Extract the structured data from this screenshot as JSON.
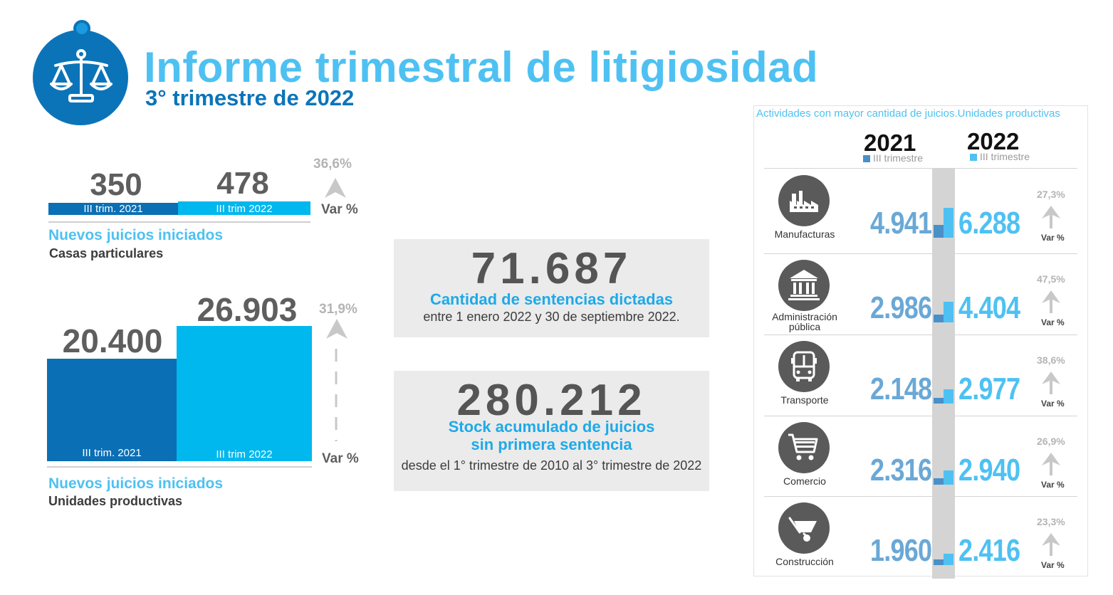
{
  "header": {
    "title": "Informe trimestral de litigiosidad",
    "subtitle": "3° trimestre de 2022"
  },
  "colors": {
    "dark_blue": "#0b74b9",
    "light_blue": "#00b7ee",
    "gray": "#5e5e5e"
  },
  "chart_data": [
    {
      "type": "bar",
      "title": "Nuevos juicios iniciados",
      "subtitle": "Casas particulares",
      "categories": [
        "III trim. 2021",
        "III trim 2022"
      ],
      "values": [
        350,
        478
      ],
      "value_labels": [
        "350",
        "478"
      ],
      "variation": "36,6%",
      "variation_label": "Var %"
    },
    {
      "type": "bar",
      "title": "Nuevos juicios iniciados",
      "subtitle": "Unidades productivas",
      "categories": [
        "III trim. 2021",
        "III trim 2022"
      ],
      "values": [
        20400,
        26903
      ],
      "value_labels": [
        "20.400",
        "26.903"
      ],
      "variation": "31,9%",
      "variation_label": "Var %"
    },
    {
      "type": "bar",
      "title": "Actividades con mayor cantidad de juicios.Unidades productivas",
      "series": [
        {
          "name": "2021",
          "sub": "III trimestre",
          "values": [
            4941,
            2986,
            2148,
            2316,
            1960
          ]
        },
        {
          "name": "2022",
          "sub": "III trimestre",
          "values": [
            6288,
            4404,
            2977,
            2940,
            2416
          ]
        }
      ],
      "categories": [
        "Manufacturas",
        "Administración pública",
        "Transporte",
        "Comercio",
        "Construcción"
      ]
    }
  ],
  "stats": {
    "sentencias": {
      "value": "71.687",
      "title": "Cantidad de sentencias dictadas",
      "sub": "entre 1 enero 2022 y 30 de septiembre 2022."
    },
    "stock": {
      "value": "280.212",
      "title1": "Stock acumulado de juicios",
      "title2": "sin primera sentencia",
      "sub": "desde el 1° trimestre de 2010 al 3° trimestre de 2022"
    }
  },
  "activities": {
    "title": "Actividades con mayor cantidad de juicios.Unidades productivas",
    "year_2021": "2021",
    "year_2022": "2022",
    "year_sub": "III trimestre",
    "var_label": "Var %",
    "rows": [
      {
        "name": "Manufacturas",
        "name2": "",
        "icon": "factory-icon",
        "v2021": "4.941",
        "v2022": "6.288",
        "var": "27,3%"
      },
      {
        "name": "Administración",
        "name2": "pública",
        "icon": "government-building-icon",
        "v2021": "2.986",
        "v2022": "4.404",
        "var": "47,5%"
      },
      {
        "name": "Transporte",
        "name2": "",
        "icon": "bus-icon",
        "v2021": "2.148",
        "v2022": "2.977",
        "var": "38,6%"
      },
      {
        "name": "Comercio",
        "name2": "",
        "icon": "shopping-cart-icon",
        "v2021": "2.316",
        "v2022": "2.940",
        "var": "26,9%"
      },
      {
        "name": "Construcción",
        "name2": "",
        "icon": "wheelbarrow-icon",
        "v2021": "1.960",
        "v2022": "2.416",
        "var": "23,3%"
      }
    ]
  }
}
